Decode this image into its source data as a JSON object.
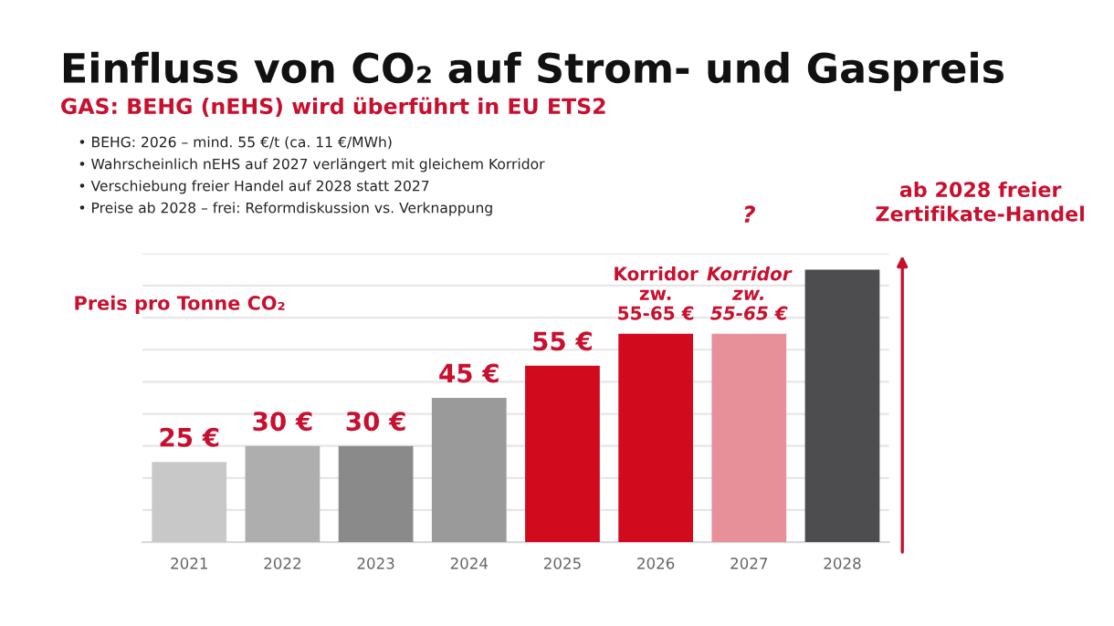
{
  "chart_data": {
    "type": "bar",
    "title": "Einfluss von CO₂ auf Strom- und Gaspreis",
    "subtitle": "GAS: BEHG (nEHS) wird überführt in EU ETS2",
    "categories": [
      "2021",
      "2022",
      "2023",
      "2024",
      "2025",
      "2026",
      "2027",
      "2028"
    ],
    "values": [
      25,
      30,
      30,
      45,
      55,
      65,
      65,
      85
    ],
    "colors": [
      "#c8c8c8",
      "#aeaeae",
      "#8a8a8a",
      "#9a9a9a",
      "#d20a1e",
      "#d20a1e",
      "#e7909a",
      "#4d4d4f"
    ],
    "value_labels": [
      "25 €",
      "30 €",
      "30 €",
      "45 €",
      "55 €",
      "Korridor\nzw.\n55-65 €",
      "Korridor\nzw.\n55-65 €",
      null
    ],
    "ylim": [
      0,
      90
    ],
    "yticks": [
      {
        "value": 0,
        "label": null
      },
      {
        "value": 10,
        "label": null
      },
      {
        "value": 20,
        "label": null
      },
      {
        "value": 30,
        "label": null
      },
      {
        "value": 40,
        "label": null
      },
      {
        "value": 50,
        "label": null
      },
      {
        "value": 60,
        "label": null
      },
      {
        "value": 70,
        "label": null
      },
      {
        "value": 80,
        "label": null
      },
      {
        "value": 90,
        "label": null
      }
    ],
    "tick_labels": "x",
    "grid": "y",
    "annotations": [
      "• BEHG: 2026 – mind. 55 €/t (ca. 11 €/MWh)",
      "• Wahrscheinlich nEHS auf 2027 verlängert mit gleichem Korridor",
      "• Verschiebung freier Handel auf 2028 statt 2027",
      "• Preise ab 2028 – frei: Reformdiskussion vs. Verknappung",
      "Preis pro Tonne CO₂",
      "?",
      "ab 2028 freier\nZertifikate-Handel"
    ]
  }
}
